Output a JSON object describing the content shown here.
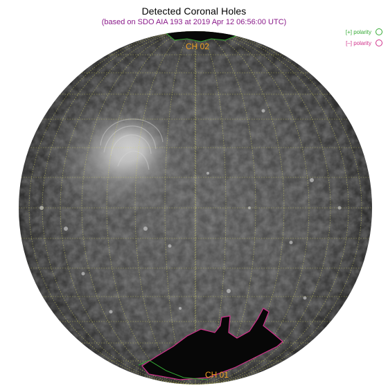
{
  "title": "Detected Coronal Holes",
  "subtitle": "(based on SDO AIA 193 at 2019 Apr 12 06:56:00 UTC)",
  "legend": {
    "positive_label": "[+] polarity",
    "negative_label": "[–] polarity",
    "positive_color": "#33aa33",
    "negative_color": "#d0308a"
  },
  "coronal_holes": [
    {
      "label": "CH 02",
      "polarity": "positive"
    },
    {
      "label": "CH 01",
      "polarity": "negative"
    }
  ],
  "colors": {
    "label_color": "#f0a020",
    "grid_color": "#d8d860"
  }
}
